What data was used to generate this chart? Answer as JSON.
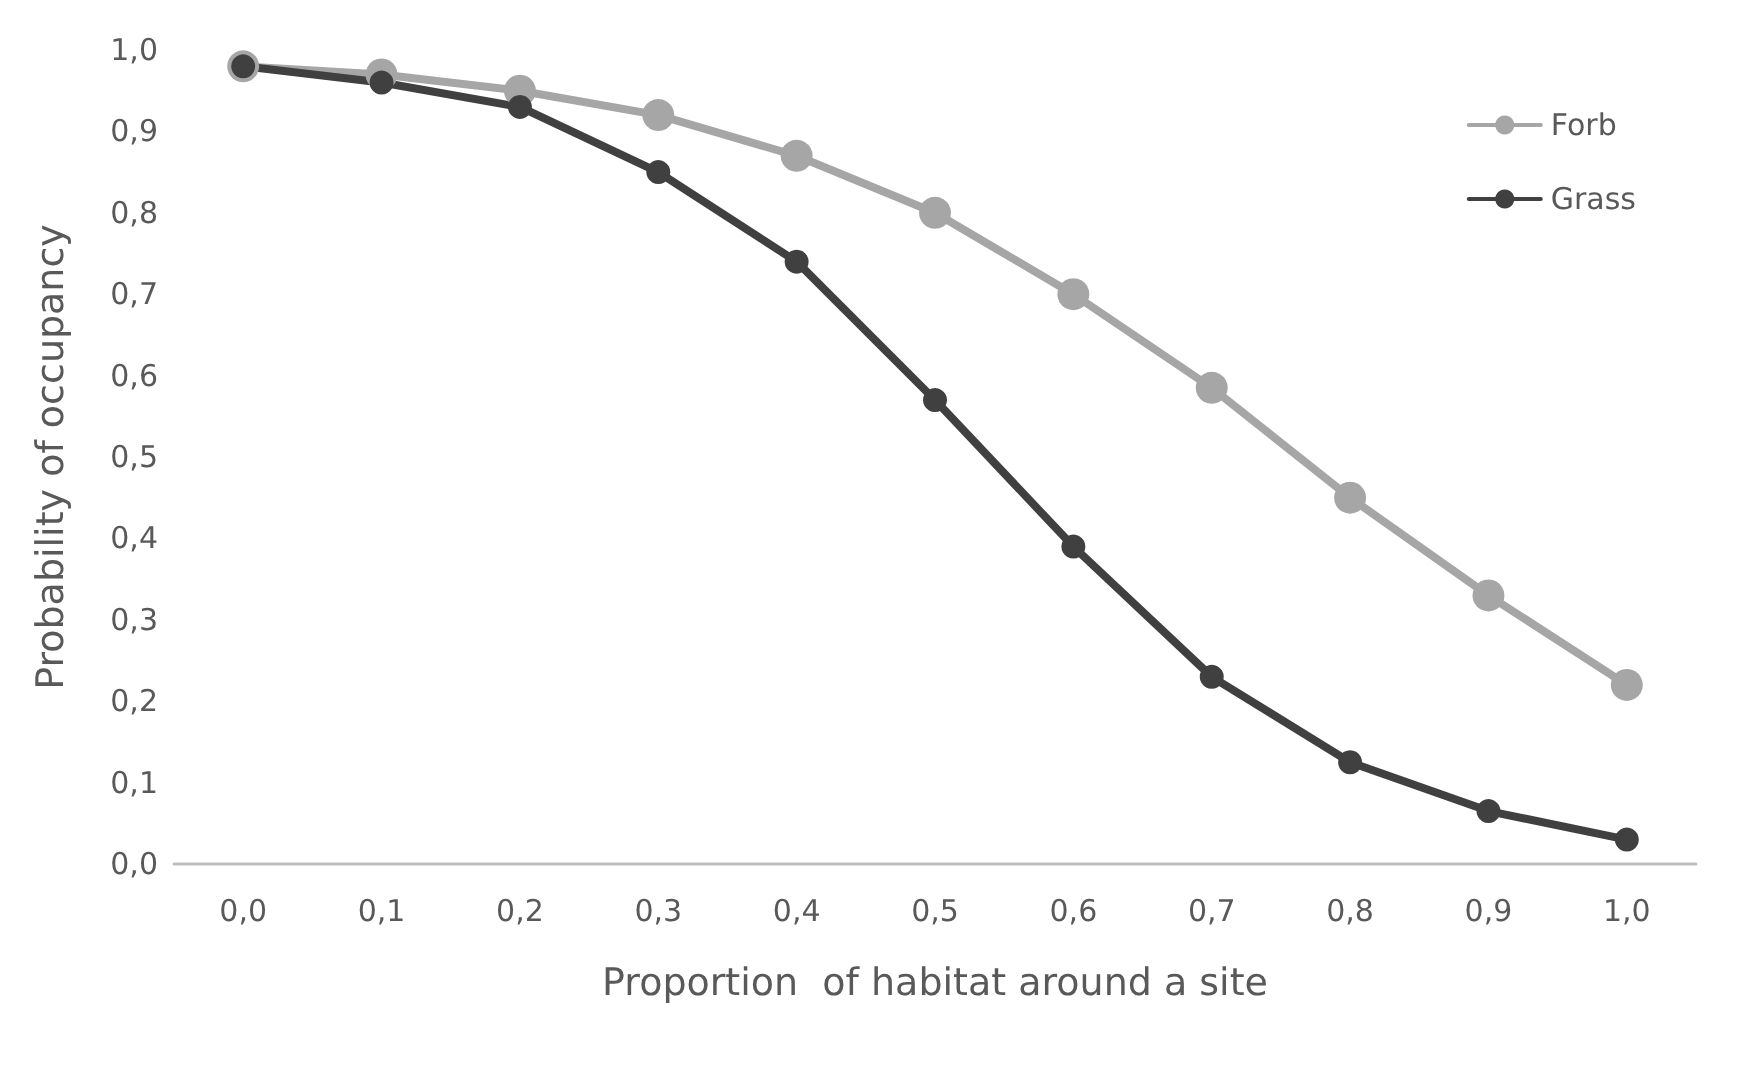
{
  "chart_data": {
    "type": "line",
    "xlabel": "Proportion  of habitat around a site",
    "ylabel": "Probability of occupancy",
    "categories": [
      "0,0",
      "0,1",
      "0,2",
      "0,3",
      "0,4",
      "0,5",
      "0,6",
      "0,7",
      "0,8",
      "0,9",
      "1,0"
    ],
    "series": [
      {
        "name": "Forb",
        "color": "#a6a6a6",
        "values": [
          0.98,
          0.97,
          0.95,
          0.92,
          0.87,
          0.8,
          0.7,
          0.585,
          0.45,
          0.33,
          0.22
        ]
      },
      {
        "name": "Grass",
        "color": "#404040",
        "values": [
          0.98,
          0.96,
          0.93,
          0.85,
          0.74,
          0.57,
          0.39,
          0.23,
          0.125,
          0.065,
          0.03
        ]
      }
    ],
    "ylim": [
      0,
      1
    ],
    "yticks": [
      {
        "value": 0,
        "label": "0,0"
      },
      {
        "value": 0.1,
        "label": "0,1"
      },
      {
        "value": 0.2,
        "label": "0,2"
      },
      {
        "value": 0.3,
        "label": "0,3"
      },
      {
        "value": 0.4,
        "label": "0,4"
      },
      {
        "value": 0.5,
        "label": "0,5"
      },
      {
        "value": 0.6,
        "label": "0,6"
      },
      {
        "value": 0.7,
        "label": "0,7"
      },
      {
        "value": 0.8,
        "label": "0,8"
      },
      {
        "value": 0.9,
        "label": "0,9"
      },
      {
        "value": 1,
        "label": "1,0"
      }
    ],
    "grid": false,
    "legend": "top right",
    "marker": "circle",
    "line_style": "solid"
  }
}
